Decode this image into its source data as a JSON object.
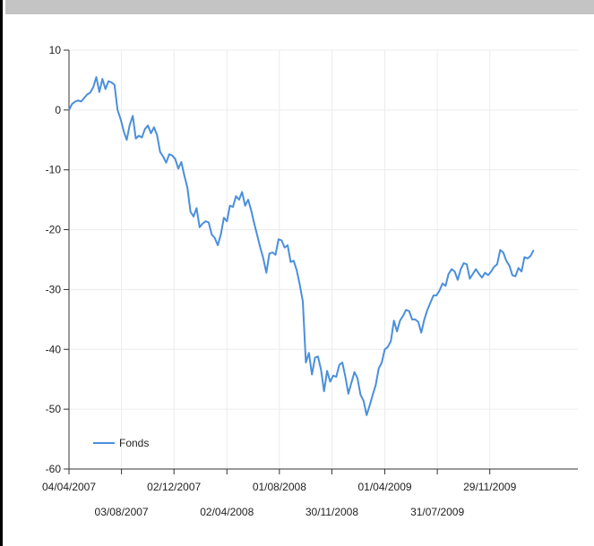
{
  "chart_data": {
    "type": "line",
    "ylim": [
      -60,
      10
    ],
    "y_ticks": [
      10,
      0,
      -10,
      -20,
      -30,
      -40,
      -50,
      -60
    ],
    "x_ticks_row1": [
      "04/04/2007",
      "02/12/2007",
      "01/08/2008",
      "01/04/2009",
      "29/11/2009"
    ],
    "x_ticks_row2": [
      "03/08/2007",
      "02/04/2008",
      "30/11/2008",
      "31/07/2009"
    ],
    "x_range": [
      "2007-04-04",
      "2010-06-20"
    ],
    "grid": true,
    "legend_position": "bottom-left",
    "series": [
      {
        "name": "Fonds",
        "color": "#4a8fdc",
        "points": [
          [
            "2007-04-04",
            0.0
          ],
          [
            "2007-04-11",
            1.0
          ],
          [
            "2007-04-18",
            1.4
          ],
          [
            "2007-04-25",
            1.6
          ],
          [
            "2007-05-02",
            1.4
          ],
          [
            "2007-05-09",
            2.0
          ],
          [
            "2007-05-16",
            2.6
          ],
          [
            "2007-05-23",
            2.9
          ],
          [
            "2007-05-30",
            3.8
          ],
          [
            "2007-06-06",
            5.5
          ],
          [
            "2007-06-13",
            3.0
          ],
          [
            "2007-06-20",
            5.2
          ],
          [
            "2007-06-27",
            3.5
          ],
          [
            "2007-07-04",
            4.8
          ],
          [
            "2007-07-11",
            4.6
          ],
          [
            "2007-07-18",
            4.2
          ],
          [
            "2007-07-25",
            0.0
          ],
          [
            "2007-08-01",
            -1.5
          ],
          [
            "2007-08-08",
            -3.5
          ],
          [
            "2007-08-15",
            -5.0
          ],
          [
            "2007-08-22",
            -2.5
          ],
          [
            "2007-08-29",
            -1.0
          ],
          [
            "2007-09-05",
            -4.8
          ],
          [
            "2007-09-12",
            -4.3
          ],
          [
            "2007-09-19",
            -4.6
          ],
          [
            "2007-09-26",
            -3.2
          ],
          [
            "2007-10-03",
            -2.6
          ],
          [
            "2007-10-10",
            -3.9
          ],
          [
            "2007-10-17",
            -2.9
          ],
          [
            "2007-10-24",
            -4.2
          ],
          [
            "2007-10-31",
            -7.0
          ],
          [
            "2007-11-07",
            -7.8
          ],
          [
            "2007-11-14",
            -8.8
          ],
          [
            "2007-11-21",
            -7.4
          ],
          [
            "2007-11-28",
            -7.6
          ],
          [
            "2007-12-05",
            -8.2
          ],
          [
            "2007-12-12",
            -9.8
          ],
          [
            "2007-12-19",
            -8.7
          ],
          [
            "2007-12-26",
            -11.0
          ],
          [
            "2008-01-02",
            -13.0
          ],
          [
            "2008-01-09",
            -17.0
          ],
          [
            "2008-01-16",
            -17.8
          ],
          [
            "2008-01-23",
            -16.4
          ],
          [
            "2008-01-30",
            -19.6
          ],
          [
            "2008-02-06",
            -19.0
          ],
          [
            "2008-02-13",
            -18.6
          ],
          [
            "2008-02-20",
            -18.8
          ],
          [
            "2008-02-27",
            -20.8
          ],
          [
            "2008-03-05",
            -21.4
          ],
          [
            "2008-03-12",
            -22.6
          ],
          [
            "2008-03-19",
            -20.8
          ],
          [
            "2008-03-26",
            -18.0
          ],
          [
            "2008-04-02",
            -18.6
          ],
          [
            "2008-04-09",
            -16.0
          ],
          [
            "2008-04-16",
            -16.2
          ],
          [
            "2008-04-23",
            -14.4
          ],
          [
            "2008-04-30",
            -15.0
          ],
          [
            "2008-05-07",
            -13.7
          ],
          [
            "2008-05-14",
            -16.0
          ],
          [
            "2008-05-21",
            -15.0
          ],
          [
            "2008-05-28",
            -16.8
          ],
          [
            "2008-06-04",
            -19.0
          ],
          [
            "2008-06-11",
            -21.0
          ],
          [
            "2008-06-18",
            -23.0
          ],
          [
            "2008-06-25",
            -24.8
          ],
          [
            "2008-07-02",
            -27.2
          ],
          [
            "2008-07-09",
            -24.0
          ],
          [
            "2008-07-16",
            -23.8
          ],
          [
            "2008-07-23",
            -24.2
          ],
          [
            "2008-07-30",
            -21.6
          ],
          [
            "2008-08-06",
            -21.8
          ],
          [
            "2008-08-13",
            -23.0
          ],
          [
            "2008-08-20",
            -22.6
          ],
          [
            "2008-08-27",
            -25.4
          ],
          [
            "2008-09-03",
            -25.2
          ],
          [
            "2008-09-10",
            -26.8
          ],
          [
            "2008-09-17",
            -29.2
          ],
          [
            "2008-09-24",
            -32.0
          ],
          [
            "2008-10-01",
            -42.2
          ],
          [
            "2008-10-08",
            -40.6
          ],
          [
            "2008-10-15",
            -44.2
          ],
          [
            "2008-10-22",
            -41.4
          ],
          [
            "2008-10-29",
            -41.2
          ],
          [
            "2008-11-05",
            -43.4
          ],
          [
            "2008-11-12",
            -47.0
          ],
          [
            "2008-11-19",
            -43.6
          ],
          [
            "2008-11-26",
            -45.4
          ],
          [
            "2008-12-03",
            -44.4
          ],
          [
            "2008-12-10",
            -44.6
          ],
          [
            "2008-12-17",
            -42.6
          ],
          [
            "2008-12-24",
            -42.2
          ],
          [
            "2008-12-31",
            -44.6
          ],
          [
            "2009-01-07",
            -47.4
          ],
          [
            "2009-01-14",
            -45.6
          ],
          [
            "2009-01-21",
            -43.8
          ],
          [
            "2009-01-28",
            -44.8
          ],
          [
            "2009-02-04",
            -47.6
          ],
          [
            "2009-02-11",
            -48.6
          ],
          [
            "2009-02-18",
            -51.0
          ],
          [
            "2009-02-25",
            -49.4
          ],
          [
            "2009-03-04",
            -47.6
          ],
          [
            "2009-03-11",
            -46.0
          ],
          [
            "2009-03-18",
            -43.2
          ],
          [
            "2009-03-25",
            -42.2
          ],
          [
            "2009-04-01",
            -40.0
          ],
          [
            "2009-04-08",
            -39.6
          ],
          [
            "2009-04-15",
            -38.6
          ],
          [
            "2009-04-22",
            -35.2
          ],
          [
            "2009-04-29",
            -37.0
          ],
          [
            "2009-05-06",
            -35.2
          ],
          [
            "2009-05-13",
            -34.4
          ],
          [
            "2009-05-20",
            -33.4
          ],
          [
            "2009-05-27",
            -33.6
          ],
          [
            "2009-06-03",
            -35.0
          ],
          [
            "2009-06-10",
            -35.0
          ],
          [
            "2009-06-17",
            -35.4
          ],
          [
            "2009-06-24",
            -37.2
          ],
          [
            "2009-07-01",
            -35.0
          ],
          [
            "2009-07-08",
            -33.4
          ],
          [
            "2009-07-15",
            -32.2
          ],
          [
            "2009-07-22",
            -31.0
          ],
          [
            "2009-07-29",
            -31.0
          ],
          [
            "2009-08-05",
            -30.2
          ],
          [
            "2009-08-12",
            -29.0
          ],
          [
            "2009-08-19",
            -29.4
          ],
          [
            "2009-08-26",
            -27.4
          ],
          [
            "2009-09-02",
            -26.6
          ],
          [
            "2009-09-09",
            -27.0
          ],
          [
            "2009-09-16",
            -28.4
          ],
          [
            "2009-09-23",
            -26.6
          ],
          [
            "2009-09-30",
            -25.6
          ],
          [
            "2009-10-07",
            -25.8
          ],
          [
            "2009-10-14",
            -28.2
          ],
          [
            "2009-10-21",
            -27.4
          ],
          [
            "2009-10-28",
            -26.6
          ],
          [
            "2009-11-04",
            -27.4
          ],
          [
            "2009-11-11",
            -28.0
          ],
          [
            "2009-11-18",
            -27.2
          ],
          [
            "2009-11-25",
            -27.6
          ],
          [
            "2009-12-02",
            -27.0
          ],
          [
            "2009-12-09",
            -26.2
          ],
          [
            "2009-12-16",
            -25.8
          ],
          [
            "2009-12-23",
            -23.4
          ],
          [
            "2009-12-30",
            -23.8
          ],
          [
            "2010-01-06",
            -25.2
          ],
          [
            "2010-01-13",
            -26.0
          ],
          [
            "2010-01-20",
            -27.6
          ],
          [
            "2010-01-27",
            -27.8
          ],
          [
            "2010-02-03",
            -26.4
          ],
          [
            "2010-02-10",
            -27.0
          ],
          [
            "2010-02-17",
            -24.6
          ],
          [
            "2010-02-24",
            -24.8
          ],
          [
            "2010-03-03",
            -24.4
          ],
          [
            "2010-03-10",
            -23.4
          ]
        ]
      }
    ]
  }
}
